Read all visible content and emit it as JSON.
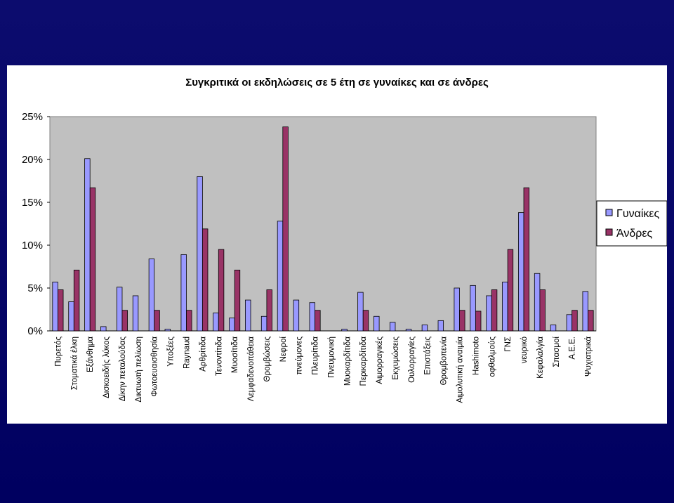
{
  "chart_data": {
    "type": "bar",
    "title": "Συγκριτικά οι εκδηλώσεις σε 5 έτη σε γυναίκες και σε άνδρες",
    "xlabel": "",
    "ylabel": "",
    "ylim": [
      0,
      25
    ],
    "yticks": [
      "0%",
      "5%",
      "10%",
      "15%",
      "20%",
      "25%"
    ],
    "grid": false,
    "legend_position": "right",
    "categories": [
      "Πυρετός",
      "Στοματικά έλκη",
      "Εξάνθημα",
      "Δισκοειδής λύκος",
      "Δίκην πεταλούδας",
      "Δικτυωτή πελίωση",
      "Φωτοευαισθησία",
      "Υποξέες",
      "Raynaud",
      "Αρθρίτιδα",
      "Τενοντίτιδα",
      "Μυοσίτιδα",
      "Λεμφαδενοπάθεια",
      "Θρομβώσεις",
      "Νεφροί",
      "πνεύμονες",
      "Πλευρίτιδα",
      "Πνευμονική",
      "Μυοκαρδίτιδα",
      "Περικαρδίτιδα",
      "Αιμορραγικές",
      "Εκχυμώσεις",
      "Ουλορραγίες",
      "Επιστάξεις",
      "Θρομβοπενία",
      "Αιμολυτική αναιμία",
      "Hashimoto",
      "οφθαλμούς",
      "ΓΝΣ",
      "νευρικό",
      "Κεφαλαλγία",
      "Σπασμοί",
      "Α.Ε.Ε.",
      "Ψυχιατρικά"
    ],
    "series": [
      {
        "name": "Γυναίκες",
        "color": "#9999ff",
        "values": [
          5.7,
          3.4,
          20.1,
          0.5,
          5.1,
          4.1,
          8.4,
          0.2,
          8.9,
          18.0,
          2.1,
          1.5,
          3.6,
          1.7,
          12.8,
          3.6,
          3.3,
          0.0,
          0.2,
          4.5,
          1.7,
          1.0,
          0.2,
          0.7,
          1.2,
          5.0,
          5.3,
          4.1,
          5.7,
          13.8,
          6.7,
          0.7,
          1.9,
          4.6
        ]
      },
      {
        "name": "Άνδρες",
        "color": "#993366",
        "values": [
          4.8,
          7.1,
          16.7,
          0.0,
          2.4,
          0.0,
          2.4,
          0.0,
          2.4,
          11.9,
          9.5,
          7.1,
          0.0,
          4.8,
          23.8,
          0.0,
          2.4,
          0.0,
          0.0,
          2.4,
          0.0,
          0.0,
          0.0,
          0.0,
          0.0,
          2.4,
          2.3,
          4.8,
          9.5,
          16.7,
          4.8,
          0.0,
          2.4,
          2.4
        ]
      }
    ]
  }
}
